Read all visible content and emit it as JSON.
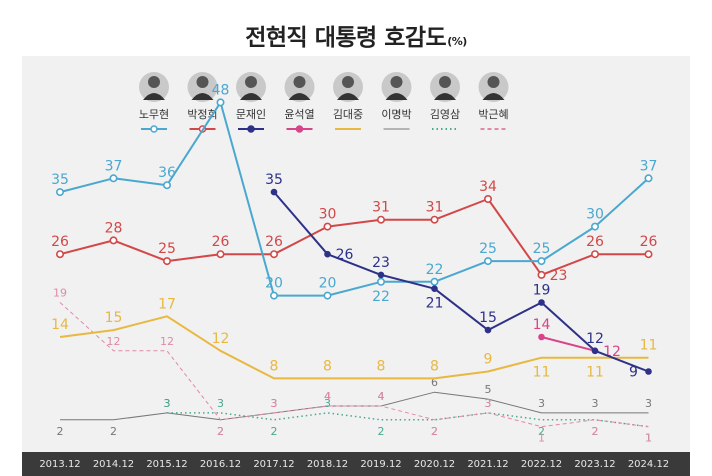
{
  "title": "전현직 대통령 호감도",
  "title_unit": "(%)",
  "chart_data": {
    "type": "line",
    "title": "전현직 대통령 호감도",
    "unit": "(%)",
    "xlabel": "",
    "ylabel": "",
    "ylim": [
      0,
      50
    ],
    "grid": false,
    "legend_position": "top",
    "categories": [
      "2013.12",
      "2014.12",
      "2015.12",
      "2016.12",
      "2017.12",
      "2018.12",
      "2019.12",
      "2020.12",
      "2021.12",
      "2022.12",
      "2023.12",
      "2024.12"
    ],
    "series": [
      {
        "name": "노무현",
        "color": "#4aa8d0",
        "style": "solid",
        "width": 2,
        "marker": "open",
        "label_size": 14,
        "values": [
          35,
          37,
          36,
          48,
          20,
          20,
          22,
          22,
          25,
          25,
          30,
          37
        ],
        "labels": [
          "35",
          "37",
          "36",
          "48",
          "20",
          "20",
          "22",
          "22",
          "25",
          "25",
          "30",
          "37"
        ],
        "label_side": [
          "top",
          "top",
          "top",
          "top",
          "top",
          "top",
          "bottom",
          "top",
          "top",
          "top",
          "top",
          "top"
        ]
      },
      {
        "name": "박정희",
        "color": "#d24848",
        "style": "solid",
        "width": 2,
        "marker": "open",
        "label_size": 14,
        "values": [
          26,
          28,
          25,
          26,
          26,
          30,
          31,
          31,
          34,
          23,
          26,
          26
        ],
        "labels": [
          "26",
          "28",
          "25",
          "26",
          "26",
          "30",
          "31",
          "31",
          "34",
          "23",
          "26",
          "26"
        ],
        "label_side": [
          "top",
          "top",
          "top",
          "top",
          "top",
          "top",
          "top",
          "top",
          "top",
          "right",
          "top",
          "top"
        ]
      },
      {
        "name": "문재인",
        "color": "#2e3188",
        "style": "solid",
        "width": 2,
        "marker": "dot",
        "label_size": 14,
        "values": [
          null,
          null,
          null,
          null,
          35,
          26,
          23,
          21,
          15,
          19,
          12,
          9
        ],
        "labels": [
          "",
          "",
          "",
          "",
          "35",
          "26",
          "23",
          "21",
          "15",
          "19",
          "12",
          "9"
        ],
        "label_side": [
          "top",
          "top",
          "top",
          "top",
          "top",
          "right",
          "top",
          "bottom",
          "top",
          "top",
          "top",
          "left"
        ]
      },
      {
        "name": "윤석열",
        "color": "#d8448a",
        "style": "solid",
        "width": 2,
        "marker": "dot",
        "label_size": 14,
        "values": [
          null,
          null,
          null,
          null,
          null,
          null,
          null,
          null,
          null,
          14,
          12,
          null
        ],
        "labels": [
          "",
          "",
          "",
          "",
          "",
          "",
          "",
          "",
          "",
          "14",
          "12",
          ""
        ],
        "label_side": [
          "top",
          "top",
          "top",
          "top",
          "top",
          "top",
          "top",
          "top",
          "top",
          "top",
          "right",
          "top"
        ]
      },
      {
        "name": "김대중",
        "color": "#e8b840",
        "style": "solid",
        "width": 2,
        "marker": "none",
        "label_size": 14,
        "values": [
          14,
          15,
          17,
          12,
          8,
          8,
          8,
          8,
          9,
          11,
          11,
          11
        ],
        "labels": [
          "14",
          "15",
          "17",
          "12",
          "8",
          "8",
          "8",
          "8",
          "9",
          "11",
          "11",
          "11"
        ],
        "label_side": [
          "top",
          "top",
          "top",
          "top",
          "top",
          "top",
          "top",
          "top",
          "top",
          "bottom",
          "bottom",
          "top"
        ]
      },
      {
        "name": "이명박",
        "color": "#777777",
        "style": "solid",
        "width": 1,
        "marker": "none",
        "label_size": 11,
        "values": [
          2,
          2,
          3,
          2,
          3,
          4,
          4,
          6,
          5,
          3,
          3,
          3
        ],
        "labels": [
          "2",
          "2",
          "3",
          "2",
          "3",
          "4",
          "4",
          "6",
          "5",
          "3",
          "3",
          "3"
        ],
        "label_side": [
          "bottom",
          "bottom",
          "top",
          "bottom",
          "top",
          "top",
          "top",
          "top",
          "top",
          "top",
          "top",
          "top"
        ]
      },
      {
        "name": "김영삼",
        "color": "#4aa890",
        "style": "dotted",
        "width": 1.5,
        "marker": "none",
        "label_size": 11,
        "values": [
          null,
          null,
          3,
          3,
          2,
          3,
          2,
          2,
          3,
          2,
          2,
          1
        ],
        "labels": [
          "",
          "",
          "3",
          "3",
          "2",
          "3",
          "2",
          "2",
          "3",
          "2",
          "2",
          "1"
        ],
        "label_side": [
          "top",
          "top",
          "top",
          "top",
          "bottom",
          "top",
          "bottom",
          "bottom",
          "top",
          "bottom",
          "bottom",
          "bottom"
        ]
      },
      {
        "name": "박근혜",
        "color": "#e08aa8",
        "style": "dashed",
        "width": 1,
        "marker": "none",
        "label_size": 11,
        "values": [
          19,
          12,
          12,
          2,
          3,
          4,
          4,
          2,
          3,
          1,
          2,
          1
        ],
        "labels": [
          "19",
          "12",
          "12",
          "2",
          "3",
          "4",
          "4",
          "2",
          "3",
          "1",
          "2",
          "1"
        ],
        "label_side": [
          "top",
          "top",
          "top",
          "bottom",
          "top",
          "top",
          "top",
          "bottom",
          "top",
          "bottom",
          "bottom",
          "bottom"
        ]
      }
    ]
  },
  "legend": {
    "items": [
      {
        "name": "노무현",
        "color": "#4aa8d0",
        "icon": "open-circle-line",
        "portrait": "roh-moo-hyun-portrait"
      },
      {
        "name": "박정희",
        "color": "#d24848",
        "icon": "open-circle-line",
        "portrait": "park-chung-hee-portrait"
      },
      {
        "name": "문재인",
        "color": "#2e3188",
        "icon": "filled-circle-line",
        "portrait": "moon-jae-in-portrait"
      },
      {
        "name": "윤석열",
        "color": "#d8448a",
        "icon": "filled-circle-line",
        "portrait": "yoon-suk-yeol-portrait"
      },
      {
        "name": "김대중",
        "color": "#e8b840",
        "icon": "solid-line",
        "portrait": "kim-dae-jung-portrait"
      },
      {
        "name": "이명박",
        "color": "#777777",
        "icon": "solid-line",
        "portrait": "lee-myung-bak-portrait"
      },
      {
        "name": "김영삼",
        "color": "#4aa890",
        "icon": "dotted-line",
        "portrait": "kim-young-sam-portrait"
      },
      {
        "name": "박근혜",
        "color": "#e08aa8",
        "icon": "dashed-line",
        "portrait": "park-geun-hye-portrait"
      }
    ]
  }
}
